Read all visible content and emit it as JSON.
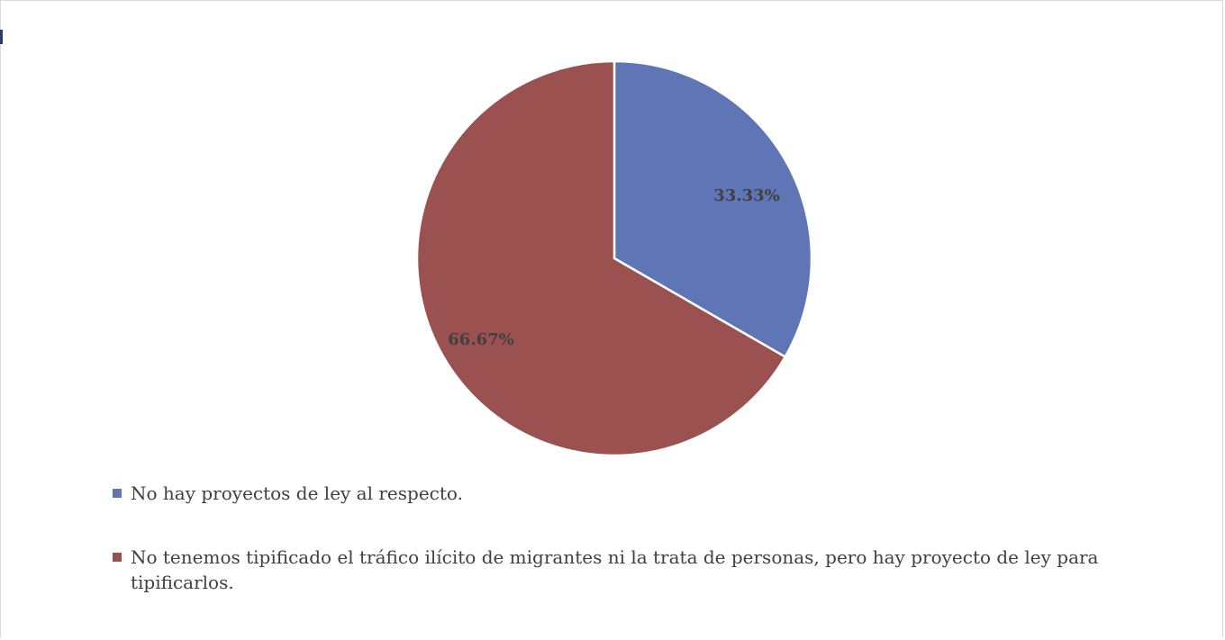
{
  "chart_data": {
    "type": "pie",
    "title": "",
    "slices": [
      {
        "label": "No hay proyectos de ley al respecto.",
        "value": 33.33,
        "value_label": "33.33%",
        "color": "#5f75b5"
      },
      {
        "label": "No tenemos tipificado el tráfico ilícito de migrantes ni la trata de personas, pero hay proyecto de ley para tipificarlos.",
        "value": 66.67,
        "value_label": "66.67%",
        "color": "#9a5150"
      }
    ],
    "legend_position": "bottom-left"
  }
}
